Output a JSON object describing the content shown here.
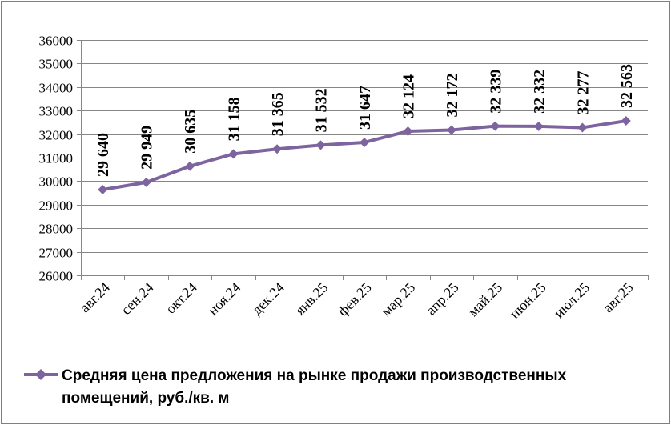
{
  "chart_data": {
    "type": "line",
    "categories": [
      "авг.24",
      "сен.24",
      "окт.24",
      "ноя.24",
      "дек.24",
      "янв.25",
      "фев.25",
      "мар.25",
      "апр.25",
      "май.25",
      "июн.25",
      "июл.25",
      "авг.25"
    ],
    "series": [
      {
        "name": "Средняя цена предложения на рынке продажи  производственных помещений,  руб./кв. м",
        "values": [
          29640,
          29949,
          30635,
          31158,
          31365,
          31532,
          31647,
          32124,
          32172,
          32339,
          32332,
          32277,
          32563
        ],
        "labels": [
          "29 640",
          "29 949",
          "30 635",
          "31 158",
          "31 365",
          "31 532",
          "31 647",
          "32 124",
          "32 172",
          "32 339",
          "32 332",
          "32 277",
          "32 563"
        ]
      }
    ],
    "yticks": [
      "26000",
      "27000",
      "28000",
      "29000",
      "30000",
      "31000",
      "32000",
      "33000",
      "34000",
      "35000",
      "36000"
    ],
    "ylim": [
      26000,
      36000
    ],
    "grid": true,
    "legend_position": "bottom",
    "legend_lines": [
      "Средняя цена предложения на рынке продажи  производственных",
      "помещений,  руб./кв. м"
    ],
    "colors": {
      "series": "#7e649e",
      "grid": "#868686",
      "axis": "#868686"
    }
  }
}
